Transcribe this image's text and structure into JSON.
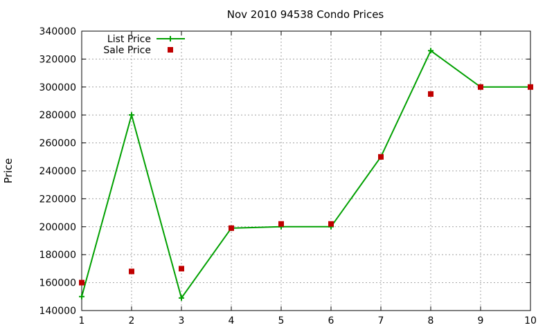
{
  "chart_data": {
    "type": "line",
    "title": "Nov 2010 94538 Condo Prices",
    "xlabel": "",
    "ylabel": "Price",
    "x": [
      1,
      2,
      3,
      4,
      5,
      6,
      7,
      8,
      9,
      10
    ],
    "xlim": [
      1,
      10
    ],
    "ylim": [
      140000,
      340000
    ],
    "xticks": [
      1,
      2,
      3,
      4,
      5,
      6,
      7,
      8,
      9,
      10
    ],
    "yticks": [
      140000,
      160000,
      180000,
      200000,
      220000,
      240000,
      260000,
      280000,
      300000,
      320000,
      340000
    ],
    "grid": true,
    "legend_position": "top-left",
    "series": [
      {
        "name": "List Price",
        "kind": "line",
        "color": "#00a000",
        "marker": "plus",
        "values": [
          150000,
          280000,
          149000,
          199000,
          200000,
          200000,
          250000,
          326000,
          300000,
          300000
        ]
      },
      {
        "name": "Sale Price",
        "kind": "points",
        "color": "#c00000",
        "marker": "square",
        "values": [
          160000,
          168000,
          170000,
          199000,
          202000,
          202000,
          250000,
          295000,
          300000,
          300000
        ]
      }
    ]
  }
}
